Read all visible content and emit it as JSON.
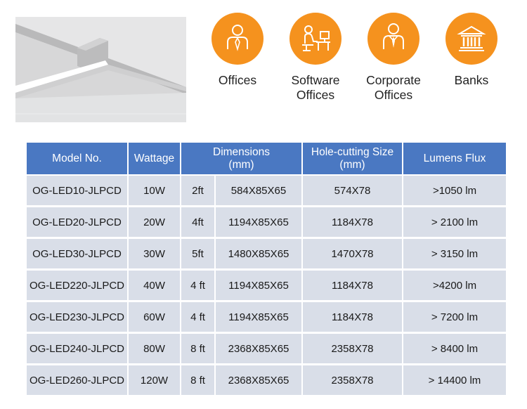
{
  "applications": [
    {
      "icon": "office-worker-icon",
      "lines": [
        "Offices"
      ]
    },
    {
      "icon": "software-desk-icon",
      "lines": [
        "Software",
        "Offices"
      ]
    },
    {
      "icon": "corporate-person-icon",
      "lines": [
        "Corporate",
        "Offices"
      ]
    },
    {
      "icon": "bank-building-icon",
      "lines": [
        "Banks"
      ]
    }
  ],
  "colors": {
    "accent": "#f5921e",
    "header": "#4a78c2",
    "row": "#d9dee8"
  },
  "table": {
    "headers": {
      "model": "Model No.",
      "wattage": "Wattage",
      "dimensions": [
        "Dimensions",
        "(mm)"
      ],
      "hole_cutting": [
        "Hole-cutting Size",
        "(mm)"
      ],
      "lumens": "Lumens Flux"
    },
    "rows": [
      {
        "model": "OG-LED10-JLPCD",
        "wattage": "10W",
        "length": "2ft",
        "dimensions": "584X85X65",
        "hole_cutting": "574X78",
        "lumens": ">1050 lm"
      },
      {
        "model": "OG-LED20-JLPCD",
        "wattage": "20W",
        "length": "4ft",
        "dimensions": "1194X85X65",
        "hole_cutting": "1184X78",
        "lumens": "> 2100 lm"
      },
      {
        "model": "OG-LED30-JLPCD",
        "wattage": "30W",
        "length": "5ft",
        "dimensions": "1480X85X65",
        "hole_cutting": "1470X78",
        "lumens": "> 3150 lm"
      },
      {
        "model": "OG-LED220-JLPCD",
        "wattage": "40W",
        "length": "4 ft",
        "dimensions": "1194X85X65",
        "hole_cutting": "1184X78",
        "lumens": ">4200 lm"
      },
      {
        "model": "OG-LED230-JLPCD",
        "wattage": "60W",
        "length": "4 ft",
        "dimensions": "1194X85X65",
        "hole_cutting": "1184X78",
        "lumens": "> 7200 lm"
      },
      {
        "model": "OG-LED240-JLPCD",
        "wattage": "80W",
        "length": "8 ft",
        "dimensions": "2368X85X65",
        "hole_cutting": "2358X78",
        "lumens": "> 8400 lm"
      },
      {
        "model": "OG-LED260-JLPCD",
        "wattage": "120W",
        "length": "8 ft",
        "dimensions": "2368X85X65",
        "hole_cutting": "2358X78",
        "lumens": "> 14400 lm"
      }
    ]
  }
}
